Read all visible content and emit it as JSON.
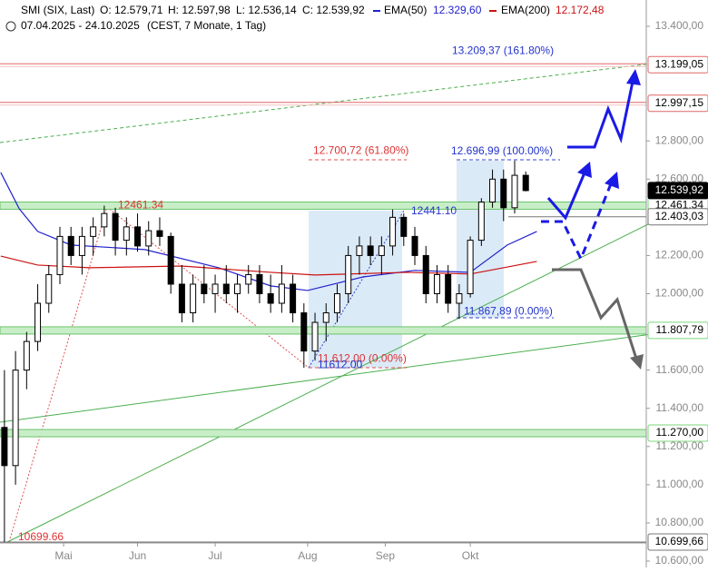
{
  "header": {
    "instrument": "SMI (SIX, Last)",
    "open": "O: 12.579,71",
    "high": "H: 12.597,98",
    "low": "L: 12.536,14",
    "close": "C: 12.539,92",
    "ema50_name": "EMA(50)",
    "ema50_value": "12.329,60",
    "ema200_name": "EMA(200)",
    "ema200_value": "12.172,48",
    "range": "07.04.2025 - 24.10.2025",
    "info": "(CEST, 7 Monate, 1 Tag)"
  },
  "chart_data": {
    "type": "candlestick",
    "up_color": "#ffffff",
    "down_color": "#000000",
    "x": [
      0,
      3,
      6,
      9,
      12,
      15,
      18,
      21,
      24,
      27,
      30,
      33,
      36,
      39,
      42,
      45,
      48,
      51,
      54,
      57,
      60,
      63,
      66,
      69,
      72,
      75,
      78,
      81,
      84,
      87,
      90,
      93,
      96,
      99,
      102,
      105,
      108,
      111,
      114,
      117,
      120,
      123,
      126,
      129,
      132,
      135,
      138,
      141
    ],
    "ohlc": [
      [
        11300,
        11600,
        10700,
        11100
      ],
      [
        11100,
        11700,
        11000,
        11600
      ],
      [
        11600,
        11800,
        11500,
        11750
      ],
      [
        11750,
        12050,
        11700,
        11950
      ],
      [
        11950,
        12150,
        11900,
        12100
      ],
      [
        12100,
        12350,
        12050,
        12300
      ],
      [
        12300,
        12350,
        12150,
        12200
      ],
      [
        12200,
        12350,
        12100,
        12300
      ],
      [
        12300,
        12400,
        12200,
        12350
      ],
      [
        12350,
        12461,
        12300,
        12420
      ],
      [
        12420,
        12450,
        12200,
        12280
      ],
      [
        12280,
        12400,
        12200,
        12350
      ],
      [
        12350,
        12420,
        12220,
        12250
      ],
      [
        12250,
        12380,
        12200,
        12330
      ],
      [
        12330,
        12400,
        12250,
        12300
      ],
      [
        12300,
        12320,
        12000,
        12050
      ],
      [
        12050,
        12150,
        11850,
        11900
      ],
      [
        11900,
        12100,
        11850,
        12050
      ],
      [
        12050,
        12150,
        11950,
        12000
      ],
      [
        12000,
        12100,
        11900,
        12050
      ],
      [
        12050,
        12150,
        11950,
        12000
      ],
      [
        12000,
        12100,
        11900,
        12050
      ],
      [
        12050,
        12150,
        12000,
        12100
      ],
      [
        12100,
        12150,
        11950,
        12000
      ],
      [
        12000,
        12100,
        11900,
        11950
      ],
      [
        11950,
        12150,
        11900,
        12050
      ],
      [
        12050,
        12100,
        11850,
        11900
      ],
      [
        11900,
        11950,
        11612,
        11700
      ],
      [
        11700,
        11900,
        11650,
        11850
      ],
      [
        11850,
        11950,
        11750,
        11900
      ],
      [
        11900,
        12050,
        11850,
        12000
      ],
      [
        12000,
        12250,
        11950,
        12200
      ],
      [
        12200,
        12300,
        12100,
        12250
      ],
      [
        12250,
        12300,
        12150,
        12200
      ],
      [
        12200,
        12300,
        12100,
        12250
      ],
      [
        12250,
        12441,
        12200,
        12400
      ],
      [
        12400,
        12420,
        12250,
        12300
      ],
      [
        12300,
        12350,
        12150,
        12200
      ],
      [
        12200,
        12250,
        11950,
        12000
      ],
      [
        12000,
        12150,
        11950,
        12100
      ],
      [
        12100,
        12150,
        11900,
        11950
      ],
      [
        11950,
        12050,
        11868,
        12000
      ],
      [
        12000,
        12300,
        11980,
        12280
      ],
      [
        12280,
        12500,
        12250,
        12480
      ],
      [
        12480,
        12650,
        12450,
        12600
      ],
      [
        12600,
        12650,
        12380,
        12450
      ],
      [
        12450,
        12697,
        12420,
        12620
      ],
      [
        12620,
        12640,
        12536,
        12540
      ]
    ],
    "series": [
      {
        "name": "EMA(50)",
        "color": "#2222cc",
        "x": [
          -1,
          4,
          9,
          18,
          38,
          58,
          72,
          82,
          97,
          111,
          126,
          136,
          144
        ],
        "values": [
          12635,
          12445,
          12326,
          12255,
          12231,
          12136,
          12041,
          12017,
          12088,
          12122,
          12112,
          12255,
          12326
        ]
      },
      {
        "name": "EMA(200)",
        "color": "#cc1111",
        "x": [
          -1,
          9,
          23,
          48,
          72,
          84,
          109,
          126,
          144
        ],
        "values": [
          12197,
          12150,
          12136,
          12145,
          12112,
          12098,
          12112,
          12103,
          12169
        ]
      }
    ],
    "xlim": [
      -1.2,
      173.6
    ],
    "ylim": [
      10600,
      13400
    ],
    "xticks": [
      {
        "value": 16,
        "label": "Mai"
      },
      {
        "value": 36,
        "label": "Jun"
      },
      {
        "value": 57,
        "label": "Jul"
      },
      {
        "value": 82,
        "label": "Aug"
      },
      {
        "value": 103,
        "label": "Sep"
      },
      {
        "value": 126,
        "label": "Okt"
      }
    ],
    "yticks": [
      {
        "value": 13400,
        "label": "13.400,00"
      },
      {
        "value": 12800,
        "label": "12.800,00"
      },
      {
        "value": 12600,
        "label": "12.600,00"
      },
      {
        "value": 12200,
        "label": "12.200,00"
      },
      {
        "value": 12000,
        "label": "12.000,00"
      },
      {
        "value": 11600,
        "label": "11.600,00"
      },
      {
        "value": 11400,
        "label": "11.400,00"
      },
      {
        "value": 11200,
        "label": "11.200,00"
      },
      {
        "value": 11000,
        "label": "11.000,00"
      },
      {
        "value": 10800,
        "label": "10.800,00"
      },
      {
        "value": 10600,
        "label": "10.600,00"
      }
    ],
    "levels": [
      {
        "value": 13199.05,
        "label": "13.199,05",
        "style": "red"
      },
      {
        "value": 12997.15,
        "label": "12.997,15",
        "style": "red"
      },
      {
        "value": 12461.34,
        "label": "12.461,34",
        "style": "green"
      },
      {
        "value": 12403.03,
        "label": "12.403,03",
        "style": "gray"
      },
      {
        "value": 11807.79,
        "label": "11.807,79",
        "style": "green"
      },
      {
        "value": 11270,
        "label": "11.270,00",
        "style": "green"
      },
      {
        "value": 10699.66,
        "label": "10.699,66",
        "style": "gray"
      },
      {
        "value": 12539.92,
        "label": "12.539,92",
        "style": "current"
      }
    ],
    "annotations": [
      {
        "value": 13209.37,
        "label": "13.209,37 (161.80%)",
        "color": "#2233cc"
      },
      {
        "value": 12700.72,
        "label": "12.700,72 (61.80%)",
        "color": "#dd3333"
      },
      {
        "value": 12696.99,
        "label": "12.696,99 (100.00%)",
        "color": "#2233cc"
      },
      {
        "value": 12461.34,
        "label": "12461.34",
        "color": "#dd3333"
      },
      {
        "value": 12441.1,
        "label": "12441.10",
        "color": "#2233cc"
      },
      {
        "value": 11867.89,
        "label": "11.867,89 (0.00%)",
        "color": "#2233cc"
      },
      {
        "value": 11612,
        "label": "11.612,00 (0.00%)",
        "color": "#dd3333"
      },
      {
        "value": 11612,
        "label": "11612.00",
        "color": "#2233cc"
      },
      {
        "value": 10699.66,
        "label": "10699.66",
        "color": "#dd3333"
      }
    ]
  }
}
